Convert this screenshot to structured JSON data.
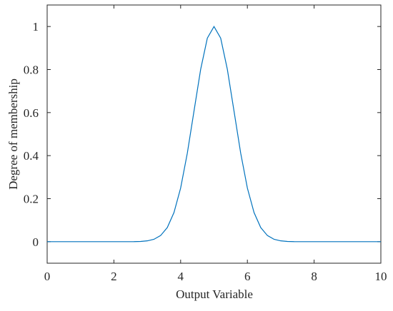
{
  "chart_data": {
    "type": "line",
    "xlabel": "Output Variable",
    "ylabel": "Degree of membership",
    "xlim": [
      0,
      10
    ],
    "ylim": [
      -0.1,
      1.1
    ],
    "xticks": [
      0,
      2,
      4,
      6,
      8,
      10
    ],
    "yticks": [
      0,
      0.2,
      0.4,
      0.6,
      0.8,
      1
    ],
    "x": [
      0,
      0.2,
      0.4,
      0.6,
      0.8,
      1,
      1.2,
      1.4,
      1.6,
      1.8,
      2,
      2.2,
      2.4,
      2.6,
      2.8,
      3,
      3.2,
      3.4,
      3.6,
      3.8,
      4,
      4.2,
      4.4,
      4.6,
      4.8,
      5,
      5.2,
      5.4,
      5.6,
      5.8,
      6,
      6.2,
      6.4,
      6.6,
      6.8,
      7,
      7.2,
      7.4,
      7.6,
      7.8,
      8,
      8.2,
      8.4,
      8.6,
      8.8,
      9,
      9.2,
      9.4,
      9.6,
      9.8,
      10
    ],
    "series": [
      {
        "color": "#0072bd",
        "values": [
          0,
          0,
          0,
          0,
          0,
          0,
          0,
          0,
          0,
          0,
          0,
          0,
          0.0001,
          0.0003,
          0.0012,
          0.0039,
          0.0111,
          0.0286,
          0.0657,
          0.1353,
          0.2494,
          0.4111,
          0.6065,
          0.8007,
          0.946,
          1,
          0.946,
          0.8007,
          0.6065,
          0.4111,
          0.2494,
          0.1353,
          0.0657,
          0.0286,
          0.0111,
          0.0039,
          0.0012,
          0.0003,
          0.0001,
          0,
          0,
          0,
          0,
          0,
          0,
          0,
          0,
          0,
          0,
          0,
          0
        ]
      }
    ]
  }
}
